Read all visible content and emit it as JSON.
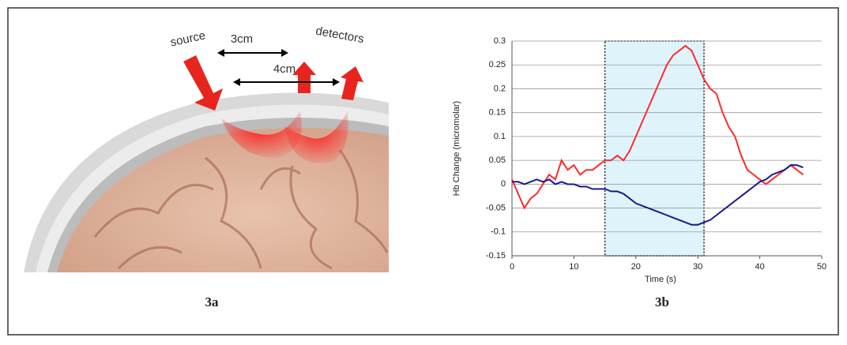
{
  "figure_a": {
    "source_label": "source",
    "distance_near": "3cm",
    "distance_far": "4cm",
    "detectors_label": "detectors",
    "caption": "3a"
  },
  "figure_b": {
    "caption": "3b"
  },
  "chart_data": {
    "type": "line",
    "y_label": "Hb Change (micromolar)",
    "x_label": "Time (s)",
    "xlim": [
      0,
      50
    ],
    "xticks": [
      0,
      10,
      20,
      30,
      40,
      50
    ],
    "ylim": [
      -0.15,
      0.3
    ],
    "yticks": [
      -0.15,
      -0.1,
      -0.05,
      0,
      0.05,
      0.1,
      0.15,
      0.2,
      0.25,
      0.3
    ],
    "grid": true,
    "shaded_region": [
      15,
      31
    ],
    "x": [
      0,
      1,
      2,
      3,
      4,
      5,
      6,
      7,
      8,
      9,
      10,
      11,
      12,
      13,
      14,
      15,
      16,
      17,
      18,
      19,
      20,
      21,
      22,
      23,
      24,
      25,
      26,
      27,
      28,
      29,
      30,
      31,
      32,
      33,
      34,
      35,
      36,
      37,
      38,
      39,
      40,
      41,
      42,
      43,
      44,
      45,
      46,
      47
    ],
    "series": [
      {
        "color": "#ff2a2a",
        "values": [
          0.01,
          -0.02,
          -0.05,
          -0.03,
          -0.02,
          0.0,
          0.02,
          0.01,
          0.05,
          0.03,
          0.04,
          0.02,
          0.03,
          0.03,
          0.04,
          0.05,
          0.05,
          0.06,
          0.05,
          0.07,
          0.1,
          0.13,
          0.16,
          0.19,
          0.22,
          0.25,
          0.27,
          0.28,
          0.29,
          0.28,
          0.25,
          0.22,
          0.2,
          0.19,
          0.15,
          0.12,
          0.1,
          0.06,
          0.03,
          0.02,
          0.01,
          0.0,
          0.01,
          0.02,
          0.03,
          0.04,
          0.03,
          0.02
        ]
      },
      {
        "color": "#1a1a8c",
        "values": [
          0.005,
          0.005,
          0.0,
          0.005,
          0.01,
          0.005,
          0.01,
          0.0,
          0.005,
          0.0,
          0.0,
          -0.005,
          -0.005,
          -0.01,
          -0.01,
          -0.01,
          -0.015,
          -0.015,
          -0.02,
          -0.03,
          -0.04,
          -0.045,
          -0.05,
          -0.055,
          -0.06,
          -0.065,
          -0.07,
          -0.075,
          -0.08,
          -0.085,
          -0.085,
          -0.08,
          -0.075,
          -0.065,
          -0.055,
          -0.045,
          -0.035,
          -0.025,
          -0.015,
          -0.005,
          0.005,
          0.01,
          0.02,
          0.025,
          0.03,
          0.04,
          0.04,
          0.035
        ]
      }
    ]
  }
}
